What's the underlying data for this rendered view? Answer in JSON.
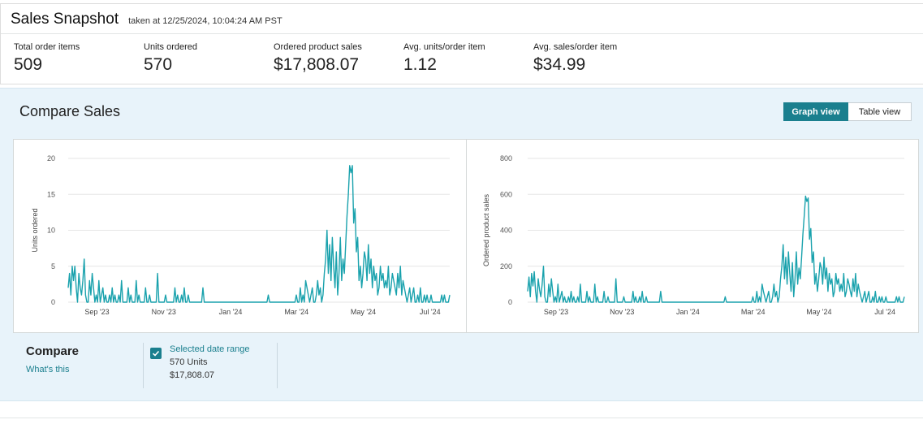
{
  "snapshot": {
    "title": "Sales Snapshot",
    "timestamp": "taken at 12/25/2024, 10:04:24 AM PST",
    "metrics": [
      {
        "label": "Total order items",
        "value": "509"
      },
      {
        "label": "Units ordered",
        "value": "570"
      },
      {
        "label": "Ordered product sales",
        "value": "$17,808.07"
      },
      {
        "label": "Avg. units/order item",
        "value": "1.12"
      },
      {
        "label": "Avg. sales/order item",
        "value": "$34.99"
      }
    ]
  },
  "compare": {
    "title": "Compare Sales",
    "graph_view_label": "Graph view",
    "table_view_label": "Table view",
    "footer_title": "Compare",
    "whats_this": "What's this",
    "legend": {
      "name": "Selected date range",
      "units": "570 Units",
      "sales": "$17,808.07"
    }
  },
  "colors": {
    "accent": "#1a7f8e",
    "series": "#1aa2ad",
    "panel_bg": "#e8f3fa"
  },
  "chart_data": [
    {
      "type": "line",
      "ylabel": "Units ordered",
      "ylim": [
        0,
        20
      ],
      "yticks": [
        0,
        5,
        10,
        15,
        20
      ],
      "xtick_labels": [
        "Sep '23",
        "Nov '23",
        "Jan '24",
        "Mar '24",
        "May '24",
        "Jul '24"
      ],
      "grid": true,
      "series": [
        {
          "values": [
            2,
            4,
            1,
            5,
            3,
            5,
            2,
            0,
            4,
            2,
            1,
            3,
            6,
            1,
            0,
            0,
            3,
            1,
            4,
            2,
            0,
            1,
            0,
            3,
            0,
            1,
            2,
            0,
            1,
            0,
            0,
            1,
            0,
            2,
            0,
            1,
            0,
            0,
            1,
            0,
            3,
            0,
            0,
            0,
            0,
            2,
            0,
            1,
            0,
            0,
            0,
            3,
            0,
            1,
            0,
            0,
            0,
            0,
            2,
            0,
            0,
            1,
            0,
            0,
            0,
            0,
            0,
            4,
            0,
            0,
            0,
            0,
            0,
            1,
            0,
            0,
            0,
            0,
            0,
            0,
            2,
            0,
            1,
            0,
            0,
            1,
            0,
            2,
            0,
            0,
            1,
            0,
            0,
            0,
            0,
            0,
            0,
            0,
            0,
            0,
            0,
            2,
            0,
            0,
            0,
            0,
            0,
            0,
            0,
            0,
            0,
            0,
            0,
            0,
            0,
            0,
            0,
            0,
            0,
            0,
            0,
            0,
            0,
            0,
            0,
            0,
            0,
            0,
            0,
            0,
            0,
            0,
            0,
            0,
            0,
            0,
            0,
            0,
            0,
            0,
            0,
            0,
            0,
            0,
            0,
            0,
            0,
            0,
            0,
            0,
            1,
            0,
            0,
            0,
            0,
            0,
            0,
            0,
            0,
            0,
            0,
            0,
            0,
            0,
            0,
            0,
            0,
            0,
            0,
            0,
            0,
            1,
            0,
            0,
            2,
            0,
            1,
            0,
            3,
            2,
            1,
            0,
            1,
            2,
            0,
            0,
            1,
            3,
            1,
            2,
            0,
            1,
            4,
            6,
            10,
            4,
            8,
            3,
            9,
            5,
            2,
            7,
            1,
            4,
            9,
            3,
            6,
            4,
            8,
            12,
            15,
            19,
            18,
            19,
            11,
            13,
            7,
            9,
            3,
            5,
            2,
            4,
            7,
            6,
            3,
            8,
            4,
            6,
            2,
            5,
            3,
            4,
            1,
            2,
            5,
            3,
            4,
            2,
            3,
            2,
            5,
            1,
            2,
            4,
            3,
            2,
            1,
            4,
            2,
            5,
            1,
            3,
            2,
            1,
            0,
            1,
            2,
            0,
            1,
            2,
            0,
            0,
            1,
            0,
            2,
            0,
            0,
            1,
            0,
            1,
            0,
            0,
            1,
            0,
            0,
            0,
            0,
            0,
            0,
            0,
            1,
            0,
            1,
            0,
            0,
            0,
            1
          ]
        }
      ]
    },
    {
      "type": "line",
      "ylabel": "Ordered product sales",
      "ylim": [
        0,
        800
      ],
      "yticks": [
        0,
        200,
        400,
        600,
        800
      ],
      "xtick_labels": [
        "Sep '23",
        "Nov '23",
        "Jan '24",
        "Mar '24",
        "May '24",
        "Jul '24"
      ],
      "grid": true,
      "series": [
        {
          "values": [
            60,
            140,
            30,
            160,
            90,
            170,
            60,
            0,
            130,
            70,
            30,
            100,
            200,
            30,
            0,
            0,
            100,
            30,
            130,
            60,
            0,
            30,
            0,
            100,
            0,
            30,
            60,
            0,
            30,
            0,
            0,
            30,
            0,
            60,
            0,
            30,
            0,
            0,
            30,
            0,
            100,
            0,
            0,
            0,
            0,
            60,
            0,
            30,
            0,
            0,
            0,
            100,
            0,
            30,
            0,
            0,
            0,
            0,
            60,
            0,
            0,
            30,
            0,
            0,
            0,
            0,
            0,
            130,
            0,
            0,
            0,
            0,
            0,
            30,
            0,
            0,
            0,
            0,
            0,
            0,
            60,
            0,
            30,
            0,
            0,
            30,
            0,
            60,
            0,
            0,
            30,
            0,
            0,
            0,
            0,
            0,
            0,
            0,
            0,
            0,
            0,
            60,
            0,
            0,
            0,
            0,
            0,
            0,
            0,
            0,
            0,
            0,
            0,
            0,
            0,
            0,
            0,
            0,
            0,
            0,
            0,
            0,
            0,
            0,
            0,
            0,
            0,
            0,
            0,
            0,
            0,
            0,
            0,
            0,
            0,
            0,
            0,
            0,
            0,
            0,
            0,
            0,
            0,
            0,
            0,
            0,
            0,
            0,
            0,
            0,
            30,
            0,
            0,
            0,
            0,
            0,
            0,
            0,
            0,
            0,
            0,
            0,
            0,
            0,
            0,
            0,
            0,
            0,
            0,
            0,
            0,
            30,
            0,
            0,
            60,
            0,
            30,
            0,
            100,
            60,
            30,
            0,
            30,
            60,
            0,
            0,
            30,
            100,
            30,
            60,
            0,
            30,
            130,
            200,
            320,
            130,
            250,
            100,
            280,
            160,
            60,
            220,
            30,
            130,
            280,
            100,
            190,
            130,
            250,
            380,
            480,
            590,
            560,
            580,
            350,
            410,
            220,
            280,
            100,
            160,
            60,
            130,
            220,
            190,
            100,
            250,
            130,
            190,
            60,
            160,
            100,
            130,
            30,
            60,
            160,
            100,
            130,
            60,
            100,
            60,
            160,
            30,
            60,
            130,
            100,
            60,
            30,
            130,
            60,
            160,
            30,
            100,
            60,
            30,
            0,
            30,
            60,
            0,
            30,
            60,
            0,
            0,
            30,
            0,
            60,
            0,
            0,
            30,
            0,
            30,
            0,
            0,
            30,
            0,
            0,
            0,
            0,
            0,
            0,
            0,
            30,
            0,
            30,
            0,
            0,
            0,
            30
          ]
        }
      ]
    }
  ]
}
